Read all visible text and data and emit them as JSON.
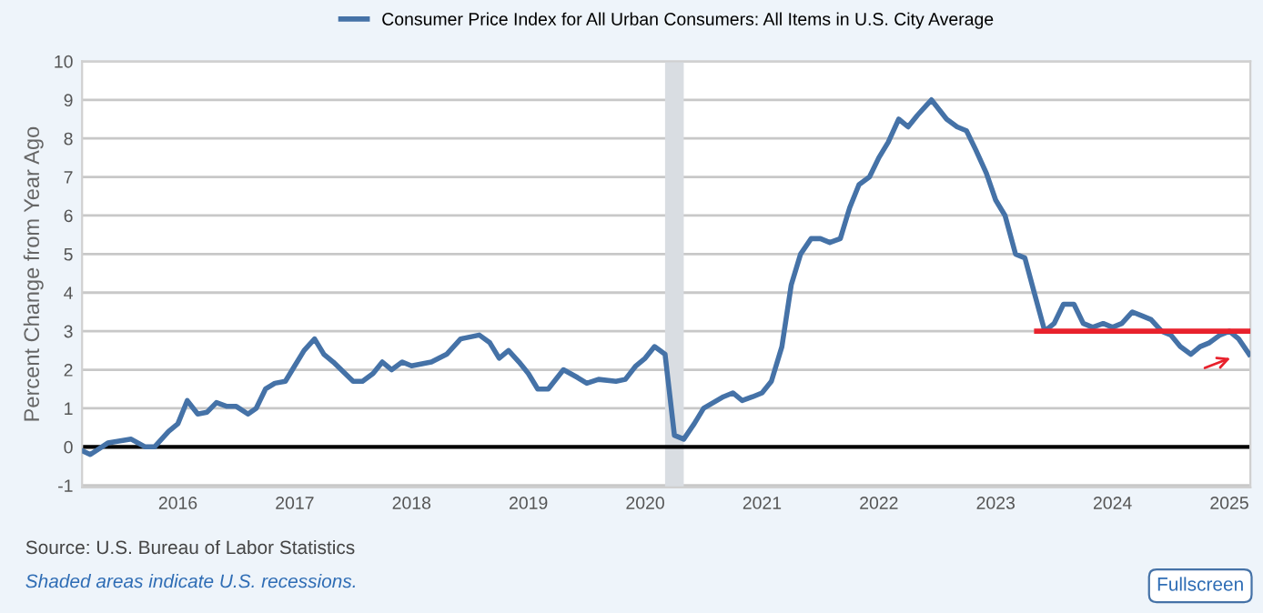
{
  "chart_data": {
    "type": "line",
    "ylabel": "Percent Change from Year Ago",
    "xlim": [
      2015.18,
      2025.18
    ],
    "ylim": [
      -1.05,
      10
    ],
    "xticks": [
      2016,
      2017,
      2018,
      2019,
      2020,
      2021,
      2022,
      2023,
      2024,
      2025
    ],
    "yticks": [
      -1,
      0,
      1,
      2,
      3,
      4,
      5,
      6,
      7,
      8,
      9,
      10
    ],
    "grid": "y",
    "legend": "top left",
    "marker": "none",
    "line_style": "solid",
    "series": [
      {
        "name": "Consumer Price Index for All Urban Consumers: All Items in U.S. City Average",
        "color": "#4572a7",
        "x": [
          2015.18,
          2015.25,
          2015.4,
          2015.6,
          2015.72,
          2015.8,
          2015.92,
          2016.0,
          2016.08,
          2016.17,
          2016.25,
          2016.33,
          2016.42,
          2016.5,
          2016.6,
          2016.67,
          2016.75,
          2016.83,
          2016.92,
          2017.0,
          2017.08,
          2017.17,
          2017.25,
          2017.33,
          2017.5,
          2017.58,
          2017.67,
          2017.75,
          2017.83,
          2017.92,
          2018.0,
          2018.17,
          2018.3,
          2018.42,
          2018.58,
          2018.67,
          2018.75,
          2018.83,
          2018.92,
          2019.0,
          2019.08,
          2019.17,
          2019.3,
          2019.42,
          2019.5,
          2019.6,
          2019.75,
          2019.83,
          2019.92,
          2020.0,
          2020.08,
          2020.17,
          2020.25,
          2020.33,
          2020.42,
          2020.5,
          2020.67,
          2020.75,
          2020.83,
          2020.92,
          2021.0,
          2021.08,
          2021.17,
          2021.25,
          2021.33,
          2021.42,
          2021.5,
          2021.58,
          2021.67,
          2021.75,
          2021.83,
          2021.92,
          2022.0,
          2022.08,
          2022.17,
          2022.25,
          2022.33,
          2022.45,
          2022.58,
          2022.67,
          2022.75,
          2022.83,
          2022.92,
          2023.0,
          2023.08,
          2023.17,
          2023.25,
          2023.33,
          2023.42,
          2023.5,
          2023.58,
          2023.67,
          2023.75,
          2023.83,
          2023.92,
          2024.0,
          2024.08,
          2024.17,
          2024.25,
          2024.33,
          2024.42,
          2024.5,
          2024.58,
          2024.67,
          2024.75,
          2024.83,
          2024.92,
          2025.0,
          2025.08,
          2025.17
        ],
        "values": [
          -0.1,
          -0.2,
          0.1,
          0.2,
          0.0,
          0.0,
          0.4,
          0.6,
          1.2,
          0.85,
          0.9,
          1.15,
          1.05,
          1.05,
          0.85,
          1.0,
          1.5,
          1.65,
          1.7,
          2.1,
          2.5,
          2.8,
          2.4,
          2.2,
          1.7,
          1.7,
          1.9,
          2.2,
          2.0,
          2.2,
          2.1,
          2.2,
          2.4,
          2.8,
          2.9,
          2.7,
          2.3,
          2.5,
          2.2,
          1.9,
          1.5,
          1.5,
          2.0,
          1.8,
          1.65,
          1.75,
          1.7,
          1.75,
          2.1,
          2.3,
          2.6,
          2.4,
          0.3,
          0.2,
          0.6,
          1.0,
          1.3,
          1.4,
          1.2,
          1.3,
          1.4,
          1.7,
          2.6,
          4.2,
          5.0,
          5.4,
          5.4,
          5.3,
          5.4,
          6.2,
          6.8,
          7.0,
          7.5,
          7.9,
          8.5,
          8.3,
          8.6,
          9.0,
          8.5,
          8.3,
          8.2,
          7.7,
          7.1,
          6.4,
          6.0,
          5.0,
          4.9,
          4.0,
          3.0,
          3.2,
          3.7,
          3.7,
          3.2,
          3.1,
          3.2,
          3.1,
          3.2,
          3.5,
          3.4,
          3.3,
          3.0,
          2.9,
          2.6,
          2.4,
          2.6,
          2.7,
          2.9,
          3.0,
          2.8,
          2.4
        ]
      },
      {
        "color": "#e8212c",
        "x": [
          2023.35,
          2025.18
        ],
        "values": [
          3.0,
          3.0
        ]
      }
    ],
    "ref_lines": [
      {
        "axis": "y",
        "value": 0,
        "color": "#000000",
        "line_style": "solid"
      }
    ],
    "bands": [
      {
        "axis": "x",
        "from": 2020.17,
        "to": 2020.33,
        "color": "#d9dde2"
      }
    ],
    "annotations": [
      "Source: U.S. Bureau of Labor Statistics",
      "Shaded areas indicate U.S. recessions.",
      "Fullscreen"
    ]
  }
}
